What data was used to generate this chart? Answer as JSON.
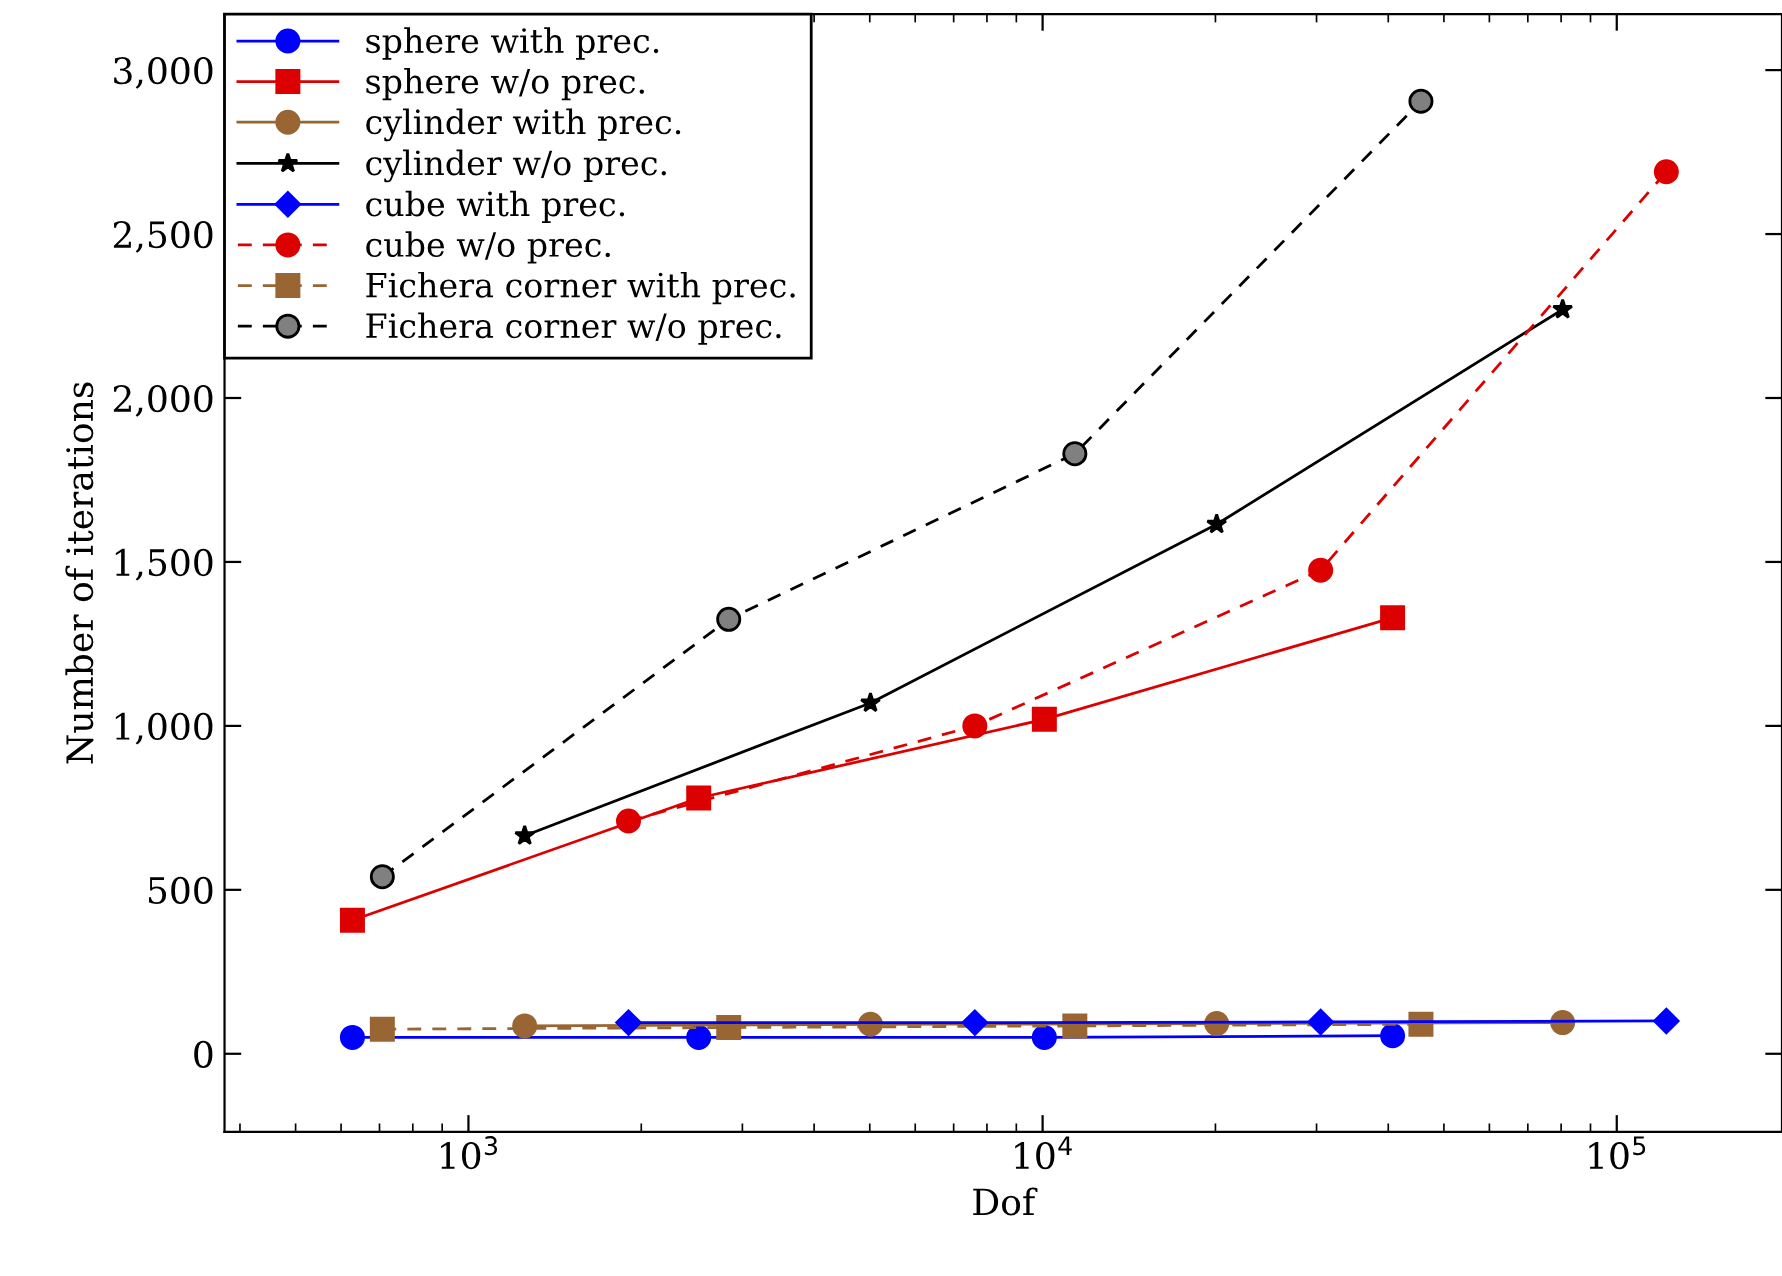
{
  "chart_data": {
    "type": "line",
    "xlabel": "Dof",
    "ylabel": "Number of iterations",
    "log": "x",
    "xlim": [
      376,
      194000
    ],
    "xticks": [
      {
        "value": 1000,
        "label": "10$^{3}$"
      },
      {
        "value": 10000,
        "label": "10$^{4}$"
      },
      {
        "value": 100000,
        "label": "10$^{5}$"
      }
    ],
    "ylim": [
      -238,
      3171
    ],
    "yticks": [
      {
        "value": 0,
        "label": "0"
      },
      {
        "value": 500,
        "label": "500"
      },
      {
        "value": 1000,
        "label": "1,000"
      },
      {
        "value": 1500,
        "label": "1,500"
      },
      {
        "value": 2000,
        "label": "2,000"
      },
      {
        "value": 2500,
        "label": "2,500"
      },
      {
        "value": 3000,
        "label": "3,000"
      }
    ],
    "grid": false,
    "legend": "top left",
    "series": [
      {
        "name": "sphere with prec.",
        "color": "#0000ff",
        "marker": "circle",
        "line_style": "solid",
        "x": [
          628,
          2518,
          10070,
          40700
        ],
        "values": [
          50,
          50,
          50,
          55
        ]
      },
      {
        "name": "sphere w/o prec.",
        "color": "#dd0000",
        "marker": "square",
        "line_style": "solid",
        "x": [
          628,
          2518,
          10070,
          40700
        ],
        "values": [
          407,
          780,
          1020,
          1330
        ]
      },
      {
        "name": "cylinder with prec.",
        "color": "#996633",
        "marker": "circle",
        "line_style": "solid",
        "x": [
          1253,
          5014,
          20100,
          80500
        ],
        "values": [
          85,
          90,
          92,
          95
        ]
      },
      {
        "name": "cylinder w/o prec.",
        "color": "#000000",
        "marker": "star",
        "line_style": "solid",
        "x": [
          1253,
          5014,
          20100,
          80500
        ],
        "values": [
          665,
          1070,
          1615,
          2270
        ]
      },
      {
        "name": "cube with prec.",
        "color": "#0000ff",
        "marker": "diamond",
        "line_style": "solid",
        "x": [
          1900,
          7620,
          30500,
          122000
        ],
        "values": [
          95,
          95,
          97,
          100
        ]
      },
      {
        "name": "cube w/o prec.",
        "color": "#dd0000",
        "marker": "circle",
        "line_style": "dashed",
        "x": [
          1900,
          7620,
          30500,
          122000
        ],
        "values": [
          710,
          1000,
          1475,
          2690
        ]
      },
      {
        "name": "Fichera corner with prec.",
        "color": "#996633",
        "marker": "square",
        "line_style": "dashed",
        "x": [
          708,
          2840,
          11380,
          45600
        ],
        "values": [
          75,
          80,
          85,
          90
        ]
      },
      {
        "name": "Fichera corner w/o prec.",
        "color": "#000000",
        "marker": "circle",
        "line_style": "dashed",
        "x": [
          708,
          2840,
          11380,
          45600
        ],
        "values": [
          540,
          1325,
          1830,
          2905
        ]
      }
    ]
  }
}
